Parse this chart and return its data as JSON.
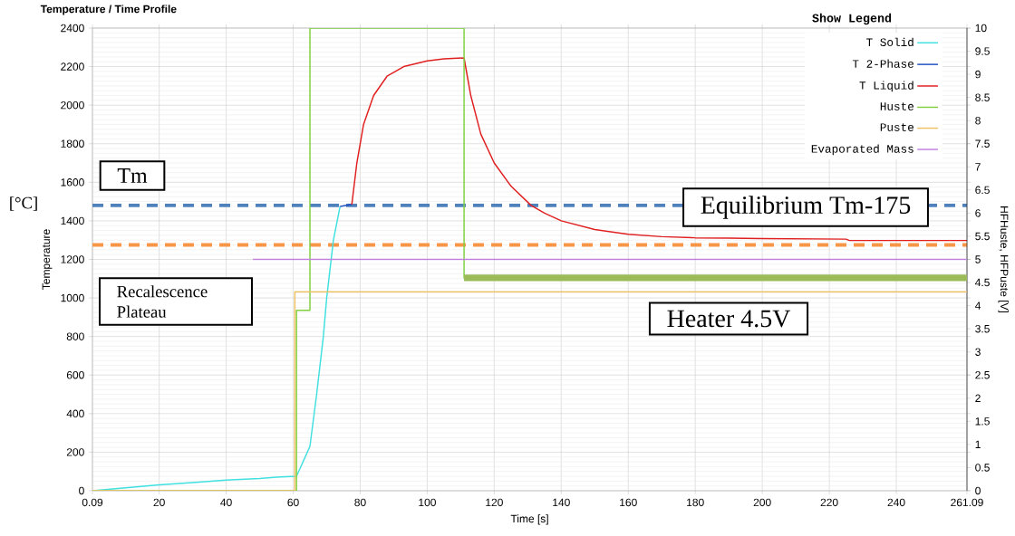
{
  "chart_data": {
    "type": "line",
    "title": "Temperature / Time Profile",
    "xlabel": "Time [s]",
    "ylabel": "Temperature",
    "y2label": "HFHuste, HFPuste [V]",
    "legend_title": "Show Legend",
    "xlim": [
      0.09,
      261.09
    ],
    "xticks": [
      0.09,
      20,
      40,
      60,
      80,
      100,
      120,
      140,
      160,
      180,
      200,
      220,
      240,
      261.09
    ],
    "ylim": [
      0,
      2400
    ],
    "yticks": [
      0,
      200,
      400,
      600,
      800,
      1000,
      1200,
      1400,
      1600,
      1800,
      2000,
      2200,
      2400
    ],
    "y2lim": [
      0,
      10
    ],
    "y2ticks": [
      0,
      0.5,
      1,
      1.5,
      2,
      2.5,
      3,
      3.5,
      4,
      4.5,
      5,
      5.5,
      6,
      6.5,
      7,
      7.5,
      8,
      8.5,
      9,
      9.5,
      10
    ],
    "grid": true,
    "legend": "top right",
    "series": [
      {
        "name": "T Solid",
        "color": "#40e0e0",
        "x": [
          0.09,
          10,
          20,
          30,
          40,
          50,
          55,
          61,
          65,
          67,
          69,
          70,
          72,
          74
        ],
        "values": [
          0,
          15,
          30,
          42,
          55,
          63,
          70,
          75,
          230,
          500,
          800,
          1000,
          1300,
          1475
        ]
      },
      {
        "name": "T 2-Phase",
        "color": "#2050c0",
        "x": [
          74,
          77.5
        ],
        "values": [
          1475,
          1485
        ]
      },
      {
        "name": "T Liquid",
        "color": "#e02020",
        "x": [
          77.5,
          79,
          81,
          84,
          88,
          93,
          100,
          105,
          111,
          113,
          116,
          120,
          125,
          131,
          135,
          140,
          150,
          160,
          170,
          180,
          190,
          200,
          225,
          226,
          261.09
        ],
        "values": [
          1485,
          1700,
          1900,
          2050,
          2150,
          2200,
          2230,
          2240,
          2245,
          2050,
          1850,
          1700,
          1580,
          1480,
          1440,
          1400,
          1355,
          1330,
          1318,
          1312,
          1310,
          1308,
          1305,
          1298,
          1298
        ]
      },
      {
        "name": "Huste",
        "type": "step",
        "axis": "y2",
        "color": "#80d040",
        "x": [
          0.09,
          61,
          65,
          111,
          261.09
        ],
        "values": [
          0,
          3.9,
          10,
          4.6,
          4.6
        ]
      },
      {
        "name": "Puste",
        "type": "step",
        "axis": "y2",
        "color": "#f0c060",
        "x": [
          0.09,
          60.5,
          261.09
        ],
        "values": [
          0,
          4.3,
          4.3
        ]
      },
      {
        "name": "Evaporated Mass",
        "axis": "y2",
        "color": "#c080e0",
        "x": [
          48,
          261.09
        ],
        "values": [
          5,
          5
        ]
      },
      {
        "axis": "y2",
        "color": "#9bbb59",
        "x": [
          111,
          261.09
        ],
        "values": [
          4.6,
          4.6
        ]
      }
    ],
    "ref_lines": [
      {
        "axis": "y",
        "value": 1480,
        "color": "#4f81bd",
        "line_style": "dashed"
      },
      {
        "axis": "y",
        "value": 1275,
        "color": "#f79646",
        "line_style": "dashed"
      }
    ],
    "annotations": [
      "Tm",
      "Recalescence Plateau",
      "Equilibrium Tm-175",
      "Heater 4.5V",
      "[°C]"
    ]
  }
}
